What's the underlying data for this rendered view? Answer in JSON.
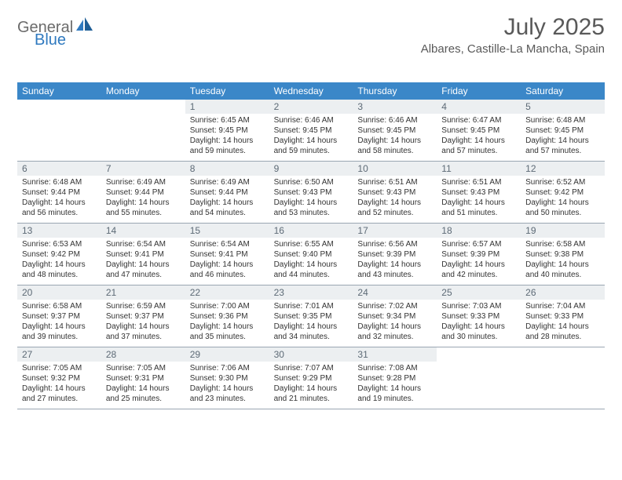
{
  "brand": {
    "part1": "General",
    "part2": "Blue"
  },
  "title": "July 2025",
  "location": "Albares, Castille-La Mancha, Spain",
  "colors": {
    "header_bg": "#3b87c8",
    "header_text": "#ffffff",
    "daynum_bg": "#eceff1",
    "daynum_text": "#5d6a76",
    "body_text": "#333333",
    "divider": "#9aa6b2",
    "title_text": "#595959",
    "brand_gray": "#6b6b6b",
    "brand_blue": "#2f79bf"
  },
  "days_of_week": [
    "Sunday",
    "Monday",
    "Tuesday",
    "Wednesday",
    "Thursday",
    "Friday",
    "Saturday"
  ],
  "weeks": [
    [
      {
        "n": "",
        "sunrise": "",
        "sunset": "",
        "daylight": ""
      },
      {
        "n": "",
        "sunrise": "",
        "sunset": "",
        "daylight": ""
      },
      {
        "n": "1",
        "sunrise": "Sunrise: 6:45 AM",
        "sunset": "Sunset: 9:45 PM",
        "daylight": "Daylight: 14 hours and 59 minutes."
      },
      {
        "n": "2",
        "sunrise": "Sunrise: 6:46 AM",
        "sunset": "Sunset: 9:45 PM",
        "daylight": "Daylight: 14 hours and 59 minutes."
      },
      {
        "n": "3",
        "sunrise": "Sunrise: 6:46 AM",
        "sunset": "Sunset: 9:45 PM",
        "daylight": "Daylight: 14 hours and 58 minutes."
      },
      {
        "n": "4",
        "sunrise": "Sunrise: 6:47 AM",
        "sunset": "Sunset: 9:45 PM",
        "daylight": "Daylight: 14 hours and 57 minutes."
      },
      {
        "n": "5",
        "sunrise": "Sunrise: 6:48 AM",
        "sunset": "Sunset: 9:45 PM",
        "daylight": "Daylight: 14 hours and 57 minutes."
      }
    ],
    [
      {
        "n": "6",
        "sunrise": "Sunrise: 6:48 AM",
        "sunset": "Sunset: 9:44 PM",
        "daylight": "Daylight: 14 hours and 56 minutes."
      },
      {
        "n": "7",
        "sunrise": "Sunrise: 6:49 AM",
        "sunset": "Sunset: 9:44 PM",
        "daylight": "Daylight: 14 hours and 55 minutes."
      },
      {
        "n": "8",
        "sunrise": "Sunrise: 6:49 AM",
        "sunset": "Sunset: 9:44 PM",
        "daylight": "Daylight: 14 hours and 54 minutes."
      },
      {
        "n": "9",
        "sunrise": "Sunrise: 6:50 AM",
        "sunset": "Sunset: 9:43 PM",
        "daylight": "Daylight: 14 hours and 53 minutes."
      },
      {
        "n": "10",
        "sunrise": "Sunrise: 6:51 AM",
        "sunset": "Sunset: 9:43 PM",
        "daylight": "Daylight: 14 hours and 52 minutes."
      },
      {
        "n": "11",
        "sunrise": "Sunrise: 6:51 AM",
        "sunset": "Sunset: 9:43 PM",
        "daylight": "Daylight: 14 hours and 51 minutes."
      },
      {
        "n": "12",
        "sunrise": "Sunrise: 6:52 AM",
        "sunset": "Sunset: 9:42 PM",
        "daylight": "Daylight: 14 hours and 50 minutes."
      }
    ],
    [
      {
        "n": "13",
        "sunrise": "Sunrise: 6:53 AM",
        "sunset": "Sunset: 9:42 PM",
        "daylight": "Daylight: 14 hours and 48 minutes."
      },
      {
        "n": "14",
        "sunrise": "Sunrise: 6:54 AM",
        "sunset": "Sunset: 9:41 PM",
        "daylight": "Daylight: 14 hours and 47 minutes."
      },
      {
        "n": "15",
        "sunrise": "Sunrise: 6:54 AM",
        "sunset": "Sunset: 9:41 PM",
        "daylight": "Daylight: 14 hours and 46 minutes."
      },
      {
        "n": "16",
        "sunrise": "Sunrise: 6:55 AM",
        "sunset": "Sunset: 9:40 PM",
        "daylight": "Daylight: 14 hours and 44 minutes."
      },
      {
        "n": "17",
        "sunrise": "Sunrise: 6:56 AM",
        "sunset": "Sunset: 9:39 PM",
        "daylight": "Daylight: 14 hours and 43 minutes."
      },
      {
        "n": "18",
        "sunrise": "Sunrise: 6:57 AM",
        "sunset": "Sunset: 9:39 PM",
        "daylight": "Daylight: 14 hours and 42 minutes."
      },
      {
        "n": "19",
        "sunrise": "Sunrise: 6:58 AM",
        "sunset": "Sunset: 9:38 PM",
        "daylight": "Daylight: 14 hours and 40 minutes."
      }
    ],
    [
      {
        "n": "20",
        "sunrise": "Sunrise: 6:58 AM",
        "sunset": "Sunset: 9:37 PM",
        "daylight": "Daylight: 14 hours and 39 minutes."
      },
      {
        "n": "21",
        "sunrise": "Sunrise: 6:59 AM",
        "sunset": "Sunset: 9:37 PM",
        "daylight": "Daylight: 14 hours and 37 minutes."
      },
      {
        "n": "22",
        "sunrise": "Sunrise: 7:00 AM",
        "sunset": "Sunset: 9:36 PM",
        "daylight": "Daylight: 14 hours and 35 minutes."
      },
      {
        "n": "23",
        "sunrise": "Sunrise: 7:01 AM",
        "sunset": "Sunset: 9:35 PM",
        "daylight": "Daylight: 14 hours and 34 minutes."
      },
      {
        "n": "24",
        "sunrise": "Sunrise: 7:02 AM",
        "sunset": "Sunset: 9:34 PM",
        "daylight": "Daylight: 14 hours and 32 minutes."
      },
      {
        "n": "25",
        "sunrise": "Sunrise: 7:03 AM",
        "sunset": "Sunset: 9:33 PM",
        "daylight": "Daylight: 14 hours and 30 minutes."
      },
      {
        "n": "26",
        "sunrise": "Sunrise: 7:04 AM",
        "sunset": "Sunset: 9:33 PM",
        "daylight": "Daylight: 14 hours and 28 minutes."
      }
    ],
    [
      {
        "n": "27",
        "sunrise": "Sunrise: 7:05 AM",
        "sunset": "Sunset: 9:32 PM",
        "daylight": "Daylight: 14 hours and 27 minutes."
      },
      {
        "n": "28",
        "sunrise": "Sunrise: 7:05 AM",
        "sunset": "Sunset: 9:31 PM",
        "daylight": "Daylight: 14 hours and 25 minutes."
      },
      {
        "n": "29",
        "sunrise": "Sunrise: 7:06 AM",
        "sunset": "Sunset: 9:30 PM",
        "daylight": "Daylight: 14 hours and 23 minutes."
      },
      {
        "n": "30",
        "sunrise": "Sunrise: 7:07 AM",
        "sunset": "Sunset: 9:29 PM",
        "daylight": "Daylight: 14 hours and 21 minutes."
      },
      {
        "n": "31",
        "sunrise": "Sunrise: 7:08 AM",
        "sunset": "Sunset: 9:28 PM",
        "daylight": "Daylight: 14 hours and 19 minutes."
      },
      {
        "n": "",
        "sunrise": "",
        "sunset": "",
        "daylight": ""
      },
      {
        "n": "",
        "sunrise": "",
        "sunset": "",
        "daylight": ""
      }
    ]
  ]
}
